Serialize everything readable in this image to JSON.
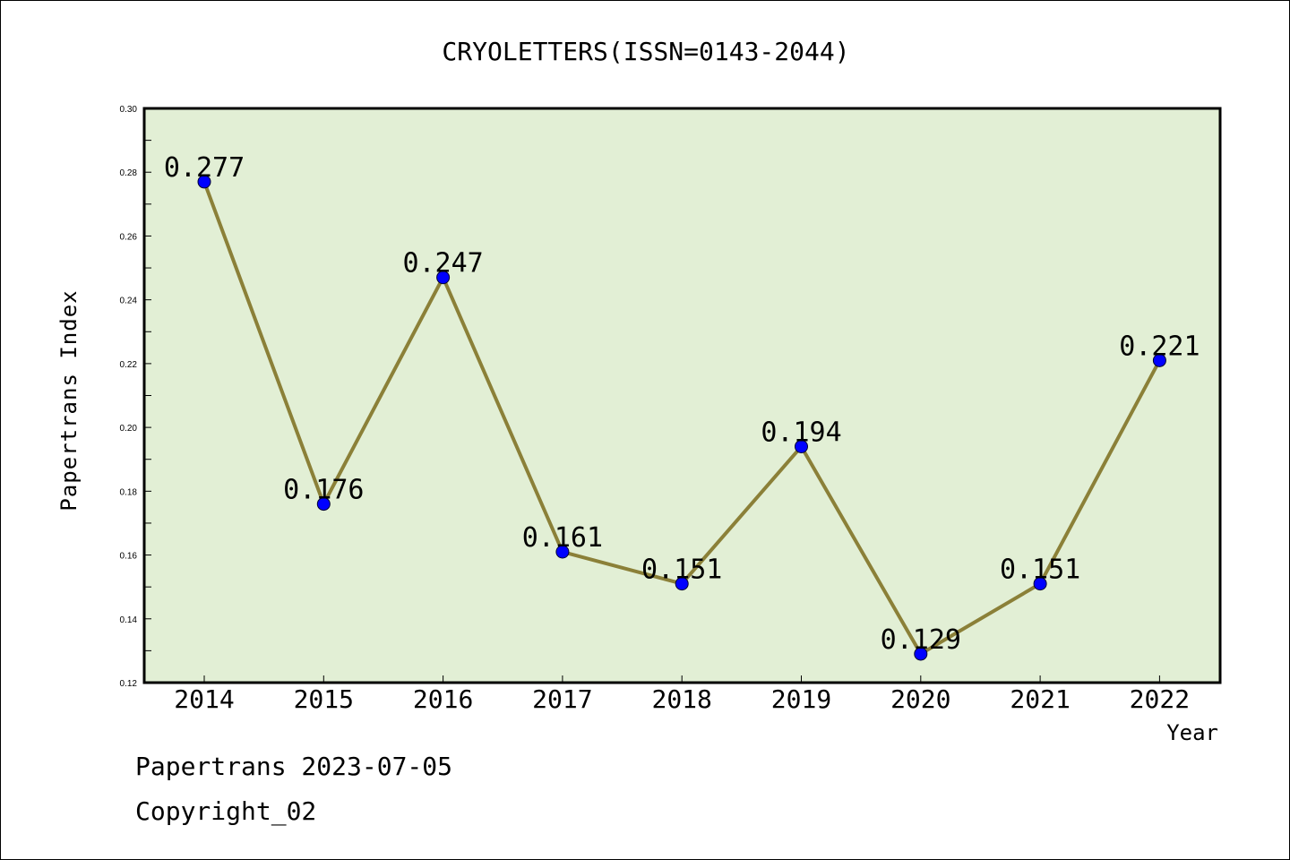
{
  "chart_data": {
    "type": "line",
    "title": "CRYOLETTERS(ISSN=0143-2044)",
    "xlabel": "Year",
    "ylabel": "Papertrans Index",
    "categories": [
      "2014",
      "2015",
      "2016",
      "2017",
      "2018",
      "2019",
      "2020",
      "2021",
      "2022"
    ],
    "values": [
      0.277,
      0.176,
      0.247,
      0.161,
      0.151,
      0.194,
      0.129,
      0.151,
      0.221
    ],
    "data_labels": [
      "0.277",
      "0.176",
      "0.247",
      "0.161",
      "0.151",
      "0.194",
      "0.129",
      "0.151",
      "0.221"
    ],
    "ylim": [
      0.12,
      0.3
    ],
    "yticks": [
      "0.12",
      "0.14",
      "0.16",
      "0.18",
      "0.20",
      "0.22",
      "0.24",
      "0.26",
      "0.28",
      "0.30"
    ],
    "grid": false,
    "colors": {
      "plot_background": "#e2efd5",
      "line": "#8b8038",
      "marker": "#0000ff"
    }
  },
  "footer": {
    "line1": "Papertrans 2023-07-05",
    "line2": "Copyright_02"
  }
}
